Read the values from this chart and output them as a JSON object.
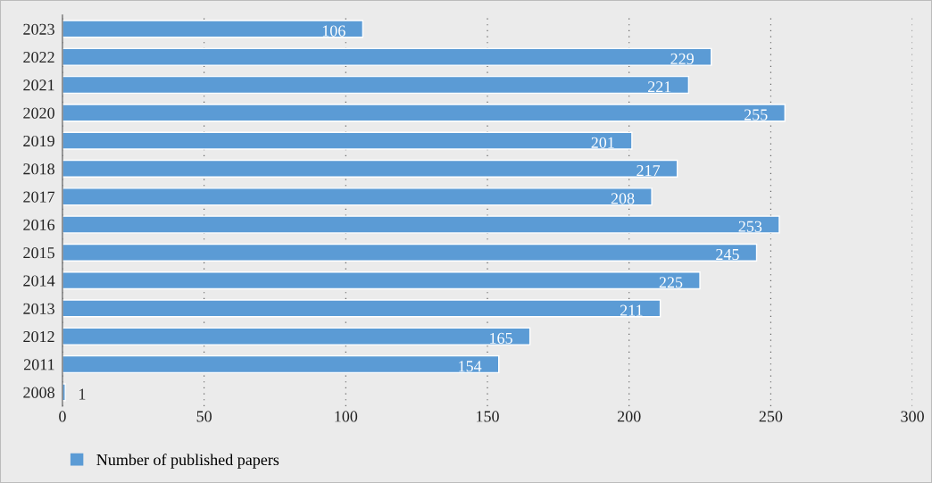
{
  "chart_data": {
    "type": "bar",
    "orientation": "horizontal",
    "categories": [
      "2023",
      "2022",
      "2021",
      "2020",
      "2019",
      "2018",
      "2017",
      "2016",
      "2015",
      "2014",
      "2013",
      "2012",
      "2011",
      "2008"
    ],
    "series": [
      {
        "name": "Number of published papers",
        "color": "#5b9bd5",
        "values": [
          106,
          229,
          221,
          255,
          201,
          217,
          208,
          253,
          245,
          225,
          211,
          165,
          154,
          1
        ]
      }
    ],
    "xlim": [
      0,
      300
    ],
    "xticks": [
      0,
      50,
      100,
      150,
      200,
      250,
      300
    ],
    "grid": "x",
    "legend": "bottom",
    "data_labels": true
  }
}
